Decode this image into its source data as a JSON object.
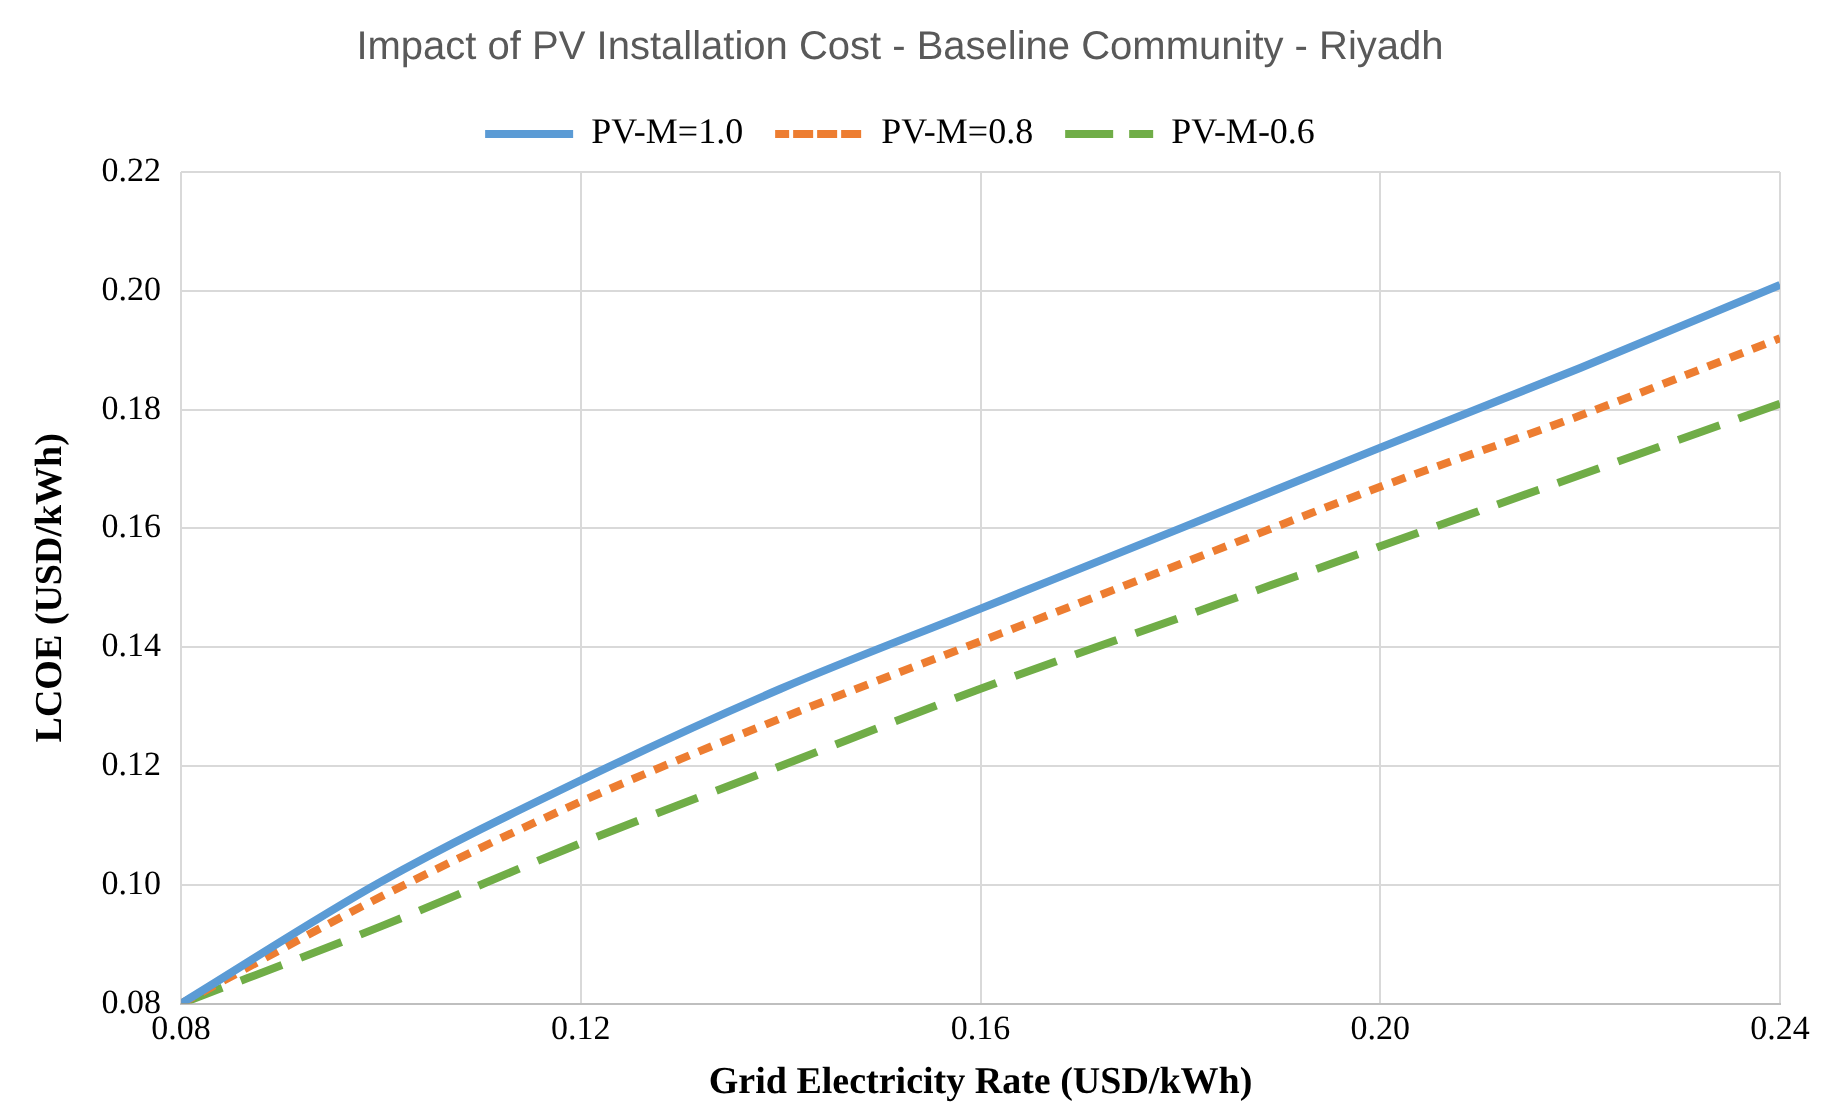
{
  "chart_data": {
    "type": "line",
    "title": "Impact of PV Installation Cost - Baseline Community - Riyadh",
    "xlabel": "Grid Electricity Rate (USD/kWh)",
    "ylabel": "LCOE (USD/kWh)",
    "x": [
      0.08,
      0.1,
      0.12,
      0.14,
      0.16,
      0.18,
      0.2,
      0.22,
      0.24
    ],
    "series": [
      {
        "name": "PV-M=1.0",
        "color": "#5b9bd5",
        "line_style": "solid",
        "values": [
          0.08,
          0.1005,
          0.1176,
          0.133,
          0.1465,
          0.16,
          0.1736,
          0.187,
          0.201
        ]
      },
      {
        "name": "PV-M=0.8",
        "color": "#ed7d31",
        "line_style": "dotted",
        "values": [
          0.08,
          0.098,
          0.114,
          0.128,
          0.141,
          0.154,
          0.167,
          0.179,
          0.192
        ]
      },
      {
        "name": "PV-M-0.6",
        "color": "#70ad47",
        "line_style": "dashed",
        "values": [
          0.08,
          0.093,
          0.107,
          0.12,
          0.133,
          0.145,
          0.157,
          0.169,
          0.181
        ]
      }
    ],
    "xlim": [
      0.08,
      0.24
    ],
    "xticks": [
      {
        "value": 0.08,
        "label": "0.08"
      },
      {
        "value": 0.12,
        "label": "0.12"
      },
      {
        "value": 0.16,
        "label": "0.16"
      },
      {
        "value": 0.2,
        "label": "0.20"
      },
      {
        "value": 0.24,
        "label": "0.24"
      }
    ],
    "ylim": [
      0.08,
      0.22
    ],
    "yticks": [
      {
        "value": 0.08,
        "label": "0.08"
      },
      {
        "value": 0.1,
        "label": "0.10"
      },
      {
        "value": 0.12,
        "label": "0.12"
      },
      {
        "value": 0.14,
        "label": "0.14"
      },
      {
        "value": 0.16,
        "label": "0.16"
      },
      {
        "value": 0.18,
        "label": "0.18"
      },
      {
        "value": 0.2,
        "label": "0.20"
      },
      {
        "value": 0.22,
        "label": "0.22"
      }
    ],
    "grid": true,
    "legend": "top",
    "marker": "none"
  }
}
